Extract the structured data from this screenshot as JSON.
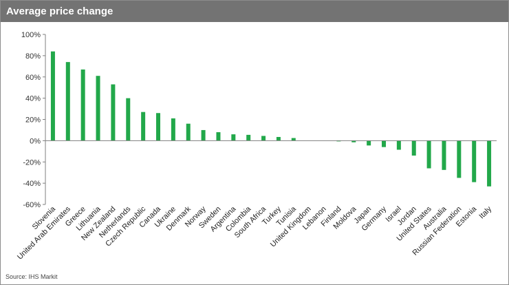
{
  "header": {
    "title": "Average price change"
  },
  "footer": {
    "source": "Source: IHS Markit"
  },
  "colors": {
    "bar": "#22a84a",
    "header_bg": "#737373",
    "axis": "#7f7f7f"
  },
  "chart_data": {
    "type": "bar",
    "title": "Average price change",
    "xlabel": "",
    "ylabel": "",
    "ylim": [
      -60,
      100
    ],
    "yticks": [
      100,
      80,
      60,
      40,
      20,
      0,
      -20,
      -40,
      -60
    ],
    "ytick_labels": [
      "100%",
      "80%",
      "60%",
      "40%",
      "20%",
      "0%",
      "-20%",
      "-40%",
      "-60%"
    ],
    "grid": false,
    "legend": "none",
    "categories": [
      "Slovenia",
      "United Arab Emirates",
      "Greece",
      "Lithuania",
      "New Zealand",
      "Netherlands",
      "Czech Republic",
      "Canada",
      "Ukraine",
      "Denmark",
      "Norway",
      "Sweden",
      "Argentina",
      "Colombia",
      "South Africa",
      "Turkey",
      "Tunisia",
      "United Kingdom",
      "Lebanon",
      "Finland",
      "Moldova",
      "Japan",
      "Germany",
      "Israel",
      "Jordan",
      "United States",
      "Australia",
      "Russian Federation",
      "Estonia",
      "Italy"
    ],
    "values": [
      84,
      74,
      67,
      61,
      53,
      40,
      27,
      26,
      21,
      16,
      10,
      8,
      6,
      5.5,
      4.5,
      3.5,
      2.5,
      0,
      0,
      -0.5,
      -1.5,
      -4.5,
      -6,
      -8.5,
      -14,
      -26,
      -27.5,
      -35,
      -39,
      -43
    ]
  }
}
